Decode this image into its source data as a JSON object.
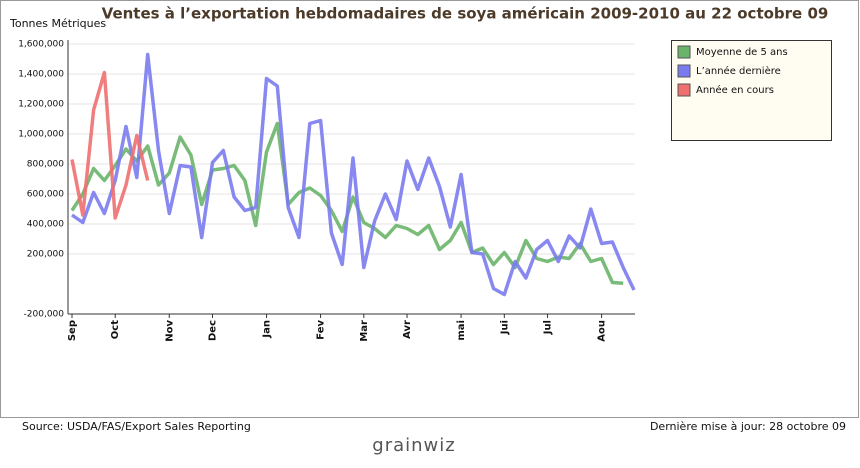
{
  "chart_data": {
    "type": "line",
    "title": "Ventes à l’exportation hebdomadaires de soya américain 2009-2010 au 22 octobre 09",
    "y_label": "Tonnes Métriques",
    "categories": [
      "Sep",
      null,
      null,
      null,
      "Oct",
      null,
      null,
      null,
      null,
      "Nov",
      null,
      null,
      null,
      "Dec",
      null,
      null,
      null,
      null,
      "Jan",
      null,
      null,
      null,
      null,
      "Fev",
      null,
      null,
      null,
      "Mar",
      null,
      null,
      null,
      "Avr",
      null,
      null,
      null,
      null,
      "mai",
      null,
      null,
      null,
      "Jui",
      null,
      null,
      null,
      "Jul",
      null,
      null,
      null,
      null,
      "Aou",
      null,
      null,
      null
    ],
    "series": [
      {
        "name": "Moyenne de 5 ans",
        "color": "#6ab46a",
        "values": [
          490000,
          600000,
          770000,
          690000,
          790000,
          900000,
          820000,
          920000,
          660000,
          740000,
          980000,
          860000,
          530000,
          760000,
          770000,
          790000,
          690000,
          390000,
          880000,
          1070000,
          530000,
          610000,
          640000,
          590000,
          490000,
          350000,
          580000,
          410000,
          370000,
          310000,
          390000,
          370000,
          330000,
          390000,
          230000,
          290000,
          410000,
          210000,
          240000,
          130000,
          210000,
          110000,
          290000,
          170000,
          150000,
          180000,
          170000,
          270000,
          150000,
          170000,
          10000,
          5000,
          null
        ]
      },
      {
        "name": "L’année dernière",
        "color": "#7b7bf0",
        "values": [
          460000,
          410000,
          610000,
          470000,
          690000,
          1050000,
          710000,
          1530000,
          890000,
          470000,
          790000,
          780000,
          310000,
          810000,
          890000,
          580000,
          490000,
          510000,
          1370000,
          1320000,
          510000,
          310000,
          1070000,
          1090000,
          340000,
          130000,
          840000,
          110000,
          420000,
          600000,
          430000,
          820000,
          630000,
          840000,
          650000,
          380000,
          730000,
          210000,
          200000,
          -30000,
          -70000,
          150000,
          40000,
          230000,
          290000,
          150000,
          320000,
          240000,
          500000,
          270000,
          280000,
          110000,
          -40000
        ]
      },
      {
        "name": "Année en cours",
        "color": "#f07070",
        "values": [
          830000,
          460000,
          1160000,
          1410000,
          440000,
          660000,
          990000,
          690000,
          null,
          null,
          null,
          null,
          null,
          null,
          null,
          null,
          null,
          null,
          null,
          null,
          null,
          null,
          null,
          null,
          null,
          null,
          null,
          null,
          null,
          null,
          null,
          null,
          null,
          null,
          null,
          null,
          null,
          null,
          null,
          null,
          null,
          null,
          null,
          null,
          null,
          null,
          null,
          null,
          null,
          null,
          null,
          null,
          null
        ]
      }
    ],
    "ylim": [
      -200000,
      1600000
    ],
    "yticks": [
      {
        "value": -200000,
        "label": "-200,000"
      },
      {
        "value": 200000,
        "label": "200,000"
      },
      {
        "value": 400000,
        "label": "400,000"
      },
      {
        "value": 600000,
        "label": "600,000"
      },
      {
        "value": 800000,
        "label": "800,000"
      },
      {
        "value": 1000000,
        "label": "1,000,000"
      },
      {
        "value": 1200000,
        "label": "1,200,000"
      },
      {
        "value": 1400000,
        "label": "1,400,000"
      },
      {
        "value": 1600000,
        "label": "1,600,000"
      }
    ],
    "grid": true
  },
  "footer": {
    "source": "Source: USDA/FAS/Export Sales Reporting",
    "updated": "Dernière mise à jour: 28 octobre 09",
    "logo": "grainwiz"
  }
}
